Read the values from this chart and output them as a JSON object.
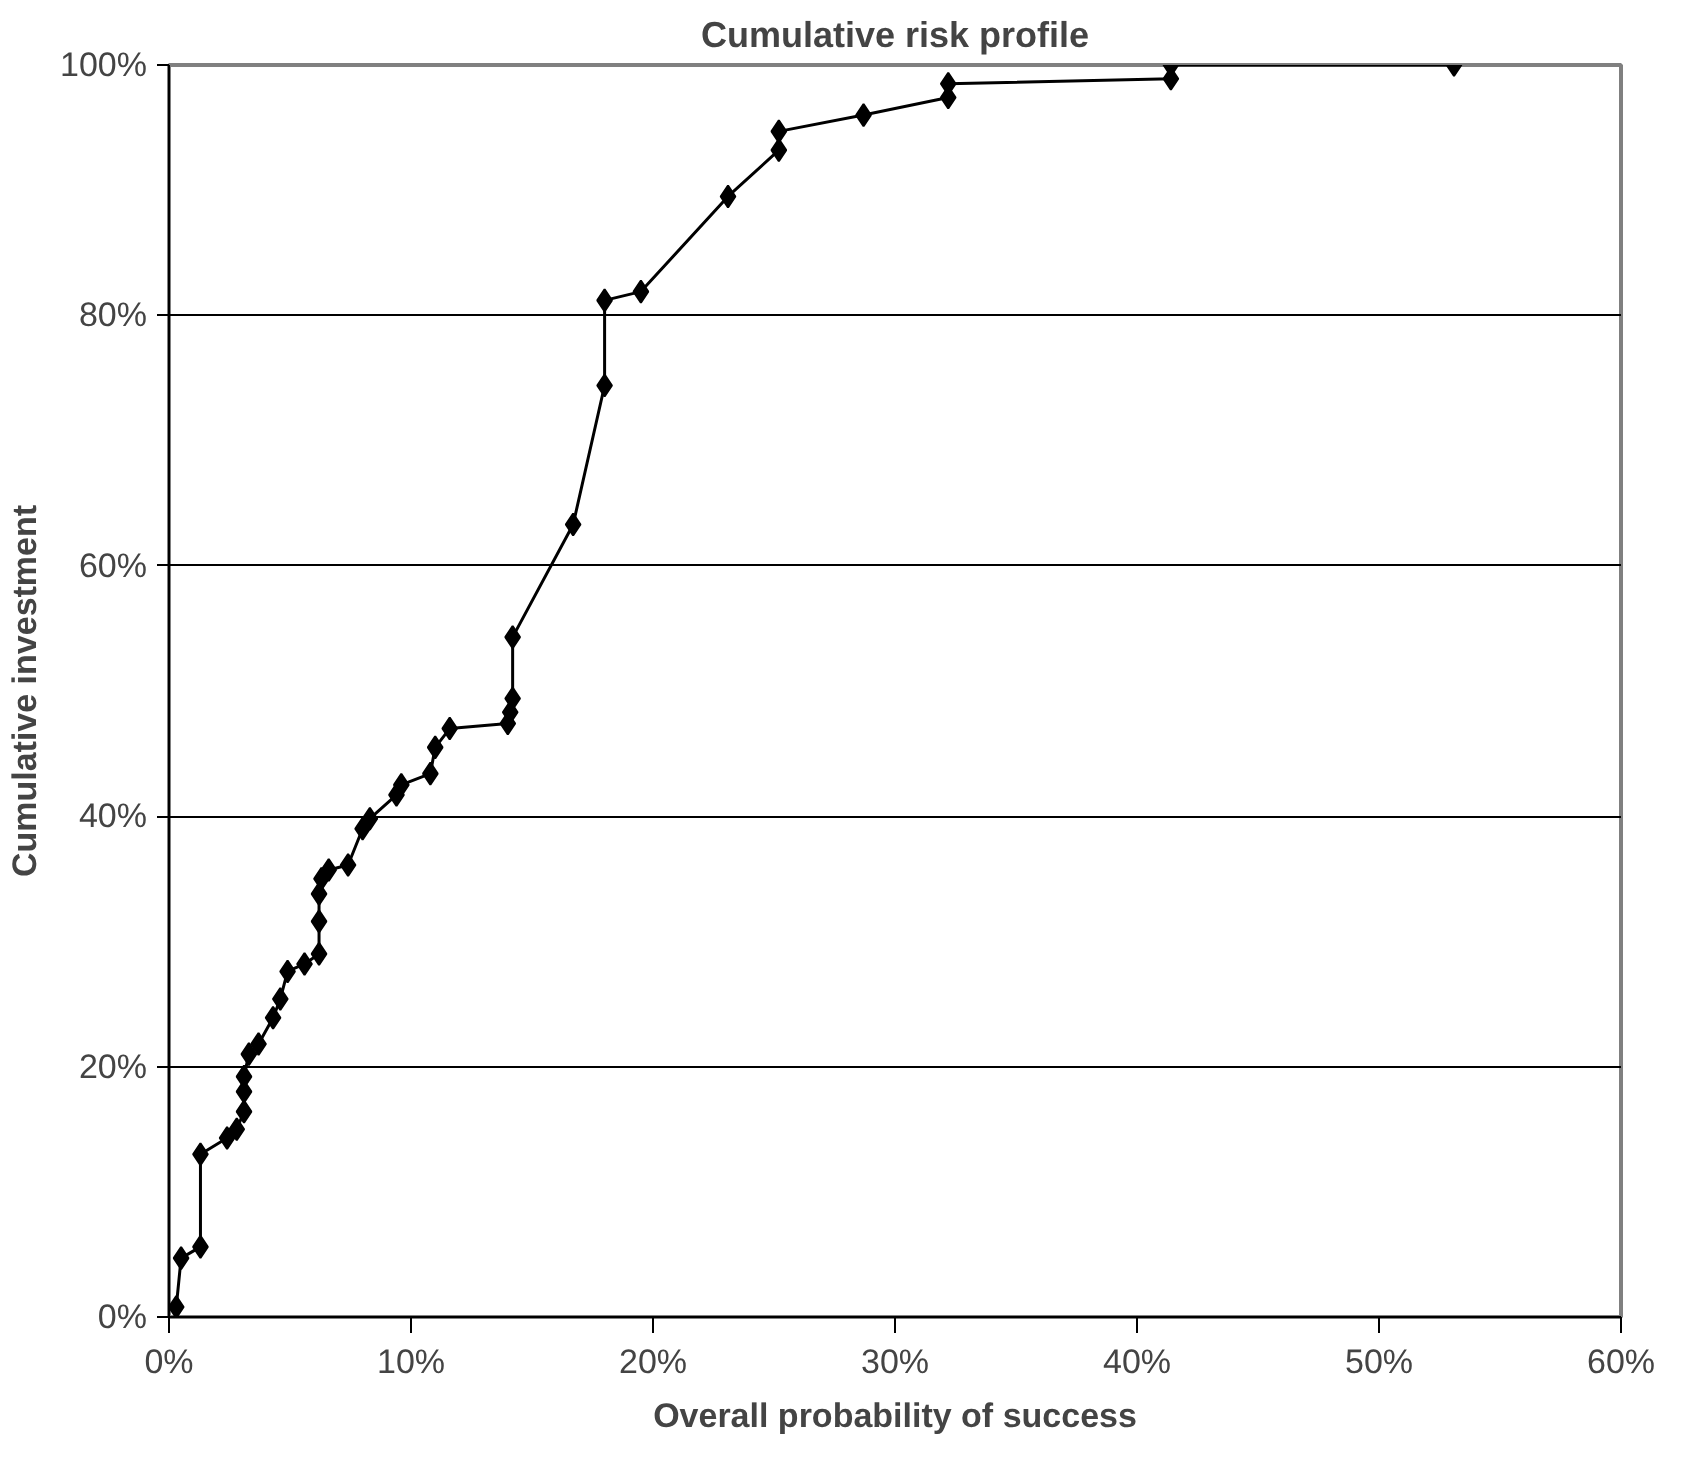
{
  "chart_data": {
    "type": "line",
    "title": "Cumulative risk profile",
    "xlabel": "Overall probability of success",
    "ylabel": "Cumulative investment",
    "marker": "diamond",
    "grid": "y",
    "line_style": "solid",
    "xlim": [
      0,
      0.6
    ],
    "ylim": [
      0,
      1
    ],
    "xticks": [
      {
        "value": 0,
        "label": "0%"
      },
      {
        "value": 0.1,
        "label": "10%"
      },
      {
        "value": 0.2,
        "label": "20%"
      },
      {
        "value": 0.3,
        "label": "30%"
      },
      {
        "value": 0.4,
        "label": "40%"
      },
      {
        "value": 0.5,
        "label": "50%"
      },
      {
        "value": 0.6,
        "label": "60%"
      }
    ],
    "yticks": [
      {
        "value": 0,
        "label": "0%"
      },
      {
        "value": 0.2,
        "label": "20%"
      },
      {
        "value": 0.4,
        "label": "40%"
      },
      {
        "value": 0.6,
        "label": "60%"
      },
      {
        "value": 0.8,
        "label": "80%"
      },
      {
        "value": 1,
        "label": "100%"
      }
    ],
    "series": [
      {
        "color": "#000000",
        "x": [
          0.003,
          0.005,
          0.013,
          0.013,
          0.024,
          0.028,
          0.031,
          0.031,
          0.031,
          0.033,
          0.037,
          0.043,
          0.046,
          0.049,
          0.056,
          0.062,
          0.062,
          0.062,
          0.063,
          0.066,
          0.074,
          0.08,
          0.083,
          0.094,
          0.096,
          0.108,
          0.11,
          0.116,
          0.14,
          0.141,
          0.142,
          0.142,
          0.167,
          0.18,
          0.18,
          0.195,
          0.231,
          0.252,
          0.252,
          0.287,
          0.322,
          0.322,
          0.414,
          0.414,
          0.531
        ],
        "values": [
          0.008,
          0.047,
          0.056,
          0.13,
          0.143,
          0.15,
          0.164,
          0.18,
          0.192,
          0.21,
          0.218,
          0.239,
          0.254,
          0.276,
          0.282,
          0.29,
          0.316,
          0.338,
          0.35,
          0.357,
          0.361,
          0.39,
          0.398,
          0.417,
          0.425,
          0.434,
          0.455,
          0.47,
          0.474,
          0.483,
          0.494,
          0.543,
          0.633,
          0.744,
          0.812,
          0.819,
          0.895,
          0.932,
          0.947,
          0.96,
          0.974,
          0.985,
          0.989,
          1.0,
          1.0
        ]
      }
    ]
  }
}
